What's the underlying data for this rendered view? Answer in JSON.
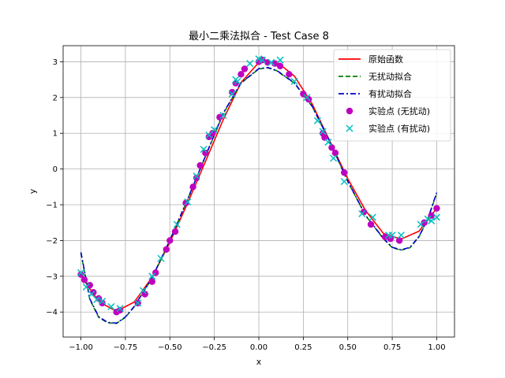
{
  "chart_data": {
    "type": "line",
    "title": "最小二乘法拟合 - Test Case 8",
    "xlabel": "x",
    "ylabel": "y",
    "xlim": [
      -1.1,
      1.1
    ],
    "ylim": [
      -4.7,
      3.45
    ],
    "xticks": [
      -1.0,
      -0.75,
      -0.5,
      -0.25,
      0.0,
      0.25,
      0.5,
      0.75,
      1.0
    ],
    "xtick_labels": [
      "−1.00",
      "−0.75",
      "−0.50",
      "−0.25",
      "0.00",
      "0.25",
      "0.50",
      "0.75",
      "1.00"
    ],
    "yticks": [
      -4,
      -3,
      -2,
      -1,
      0,
      1,
      2,
      3
    ],
    "ytick_labels": [
      "−4",
      "−3",
      "−2",
      "−1",
      "0",
      "1",
      "2",
      "3"
    ],
    "grid": true,
    "legend_position": "top-right",
    "series": [
      {
        "name": "原始函数",
        "kind": "line",
        "color": "#ff0000",
        "dash": "solid",
        "x": [
          -1.0,
          -0.9,
          -0.8,
          -0.7,
          -0.6,
          -0.5,
          -0.4,
          -0.3,
          -0.2,
          -0.1,
          0.0,
          0.1,
          0.2,
          0.3,
          0.4,
          0.5,
          0.6,
          0.7,
          0.8,
          0.9,
          1.0
        ],
        "y": [
          -2.98,
          -3.71,
          -3.98,
          -3.72,
          -3.03,
          -2.05,
          -0.95,
          0.21,
          1.38,
          2.42,
          2.98,
          3.0,
          2.6,
          1.82,
          0.77,
          -0.27,
          -1.16,
          -1.8,
          -1.96,
          -1.74,
          -1.1
        ]
      },
      {
        "name": "无扰动拟合",
        "kind": "line",
        "color": "#008000",
        "dash": "dashed",
        "x": [
          -1.0,
          -0.95,
          -0.9,
          -0.85,
          -0.8,
          -0.75,
          -0.7,
          -0.6,
          -0.5,
          -0.4,
          -0.3,
          -0.2,
          -0.1,
          0.0,
          0.05,
          0.1,
          0.2,
          0.3,
          0.4,
          0.5,
          0.6,
          0.7,
          0.75,
          0.8,
          0.85,
          0.9,
          0.95,
          1.0
        ],
        "y": [
          -2.35,
          -3.65,
          -4.15,
          -4.3,
          -4.32,
          -4.15,
          -3.85,
          -3.05,
          -2.0,
          -0.85,
          0.35,
          1.55,
          2.4,
          2.8,
          2.83,
          2.75,
          2.4,
          1.75,
          0.75,
          -0.35,
          -1.3,
          -1.95,
          -2.2,
          -2.27,
          -2.2,
          -1.9,
          -1.4,
          -0.68
        ]
      },
      {
        "name": "有扰动拟合",
        "kind": "line",
        "color": "#0000cc",
        "dash": "dashdot",
        "x": [
          -1.0,
          -0.95,
          -0.9,
          -0.85,
          -0.8,
          -0.75,
          -0.7,
          -0.6,
          -0.5,
          -0.4,
          -0.3,
          -0.2,
          -0.1,
          0.0,
          0.05,
          0.1,
          0.2,
          0.3,
          0.4,
          0.5,
          0.6,
          0.7,
          0.75,
          0.8,
          0.85,
          0.9,
          0.95,
          1.0
        ],
        "y": [
          -2.33,
          -3.63,
          -4.13,
          -4.29,
          -4.31,
          -4.14,
          -3.84,
          -3.04,
          -1.99,
          -0.84,
          0.36,
          1.56,
          2.41,
          2.81,
          2.84,
          2.76,
          2.41,
          1.76,
          0.76,
          -0.34,
          -1.29,
          -1.94,
          -2.19,
          -2.26,
          -2.19,
          -1.89,
          -1.39,
          -0.66
        ]
      },
      {
        "name": "实验点 (无扰动)",
        "kind": "scatter",
        "marker": "circle",
        "color": "#bf00bf",
        "x": [
          -1.0,
          -0.98,
          -0.95,
          -0.93,
          -0.9,
          -0.88,
          -0.8,
          -0.78,
          -0.68,
          -0.64,
          -0.6,
          -0.58,
          -0.52,
          -0.5,
          -0.47,
          -0.41,
          -0.37,
          -0.35,
          -0.33,
          -0.3,
          -0.28,
          -0.26,
          -0.22,
          -0.15,
          -0.13,
          -0.1,
          -0.08,
          0.0,
          0.02,
          0.05,
          0.09,
          0.12,
          0.17,
          0.25,
          0.28,
          0.36,
          0.37,
          0.41,
          0.43,
          0.48,
          0.59,
          0.63,
          0.71,
          0.74,
          0.79,
          0.93,
          0.97,
          1.0
        ],
        "y": [
          -2.95,
          -3.1,
          -3.25,
          -3.45,
          -3.62,
          -3.75,
          -4.0,
          -3.95,
          -3.75,
          -3.5,
          -3.15,
          -2.9,
          -2.25,
          -2.0,
          -1.75,
          -0.95,
          -0.5,
          -0.25,
          0.1,
          0.45,
          0.9,
          1.0,
          1.45,
          2.15,
          2.4,
          2.65,
          2.8,
          3.0,
          3.05,
          2.98,
          2.95,
          2.88,
          2.65,
          2.1,
          1.95,
          1.0,
          0.88,
          0.6,
          0.45,
          -0.1,
          -1.2,
          -1.55,
          -1.9,
          -1.95,
          -2.0,
          -1.5,
          -1.3,
          -1.1
        ]
      },
      {
        "name": "实验点 (有扰动)",
        "kind": "scatter",
        "marker": "x",
        "color": "#00bfbf",
        "x": [
          -1.0,
          -0.97,
          -0.94,
          -0.91,
          -0.88,
          -0.83,
          -0.78,
          -0.68,
          -0.65,
          -0.6,
          -0.55,
          -0.46,
          -0.4,
          -0.35,
          -0.31,
          -0.28,
          -0.25,
          -0.2,
          -0.15,
          -0.13,
          -0.12,
          -0.05,
          0.0,
          0.02,
          0.07,
          0.12,
          0.2,
          0.27,
          0.33,
          0.36,
          0.39,
          0.42,
          0.48,
          0.58,
          0.64,
          0.73,
          0.75,
          0.8,
          0.91,
          0.95,
          0.97,
          1.0
        ],
        "y": [
          -2.9,
          -3.3,
          -3.5,
          -3.65,
          -3.7,
          -3.85,
          -3.9,
          -3.75,
          -3.4,
          -3.0,
          -2.5,
          -1.55,
          -0.92,
          -0.2,
          0.55,
          0.95,
          1.1,
          1.5,
          2.1,
          2.5,
          2.45,
          2.95,
          3.08,
          3.05,
          2.98,
          3.05,
          2.45,
          2.0,
          1.35,
          1.05,
          0.75,
          0.3,
          -0.35,
          -1.25,
          -1.35,
          -1.85,
          -1.85,
          -1.85,
          -1.55,
          -1.4,
          -1.45,
          -1.35
        ]
      }
    ]
  }
}
